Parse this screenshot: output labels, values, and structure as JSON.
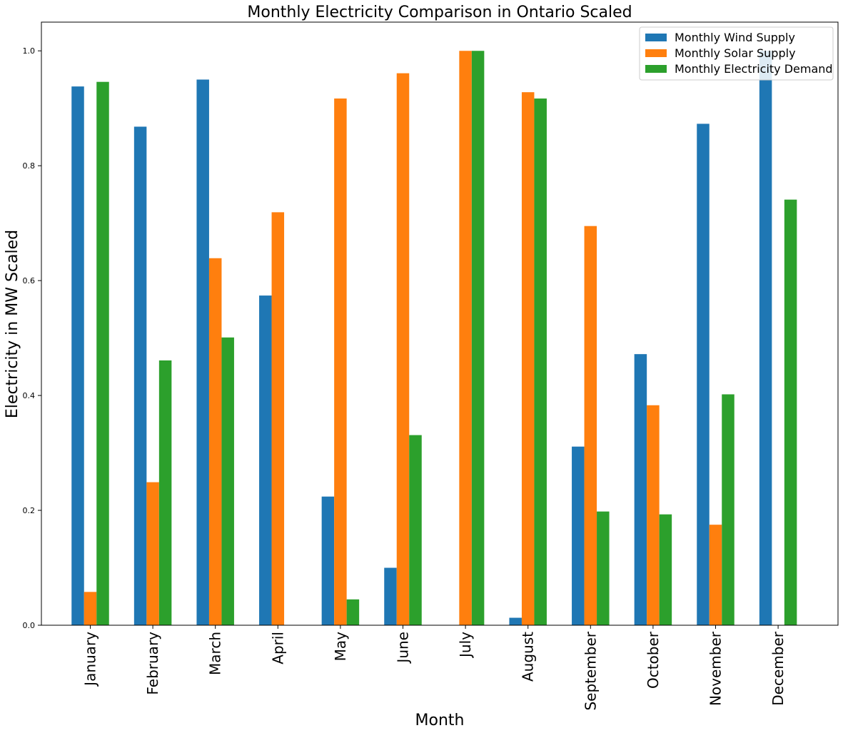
{
  "chart_data": {
    "type": "bar",
    "title": "Monthly Electricity Comparison in Ontario Scaled",
    "xlabel": "Month",
    "ylabel": "Electricity in MW Scaled",
    "ylim": [
      0,
      1.05
    ],
    "yticks": [
      "0.0",
      "0.2",
      "0.4",
      "0.6",
      "0.8",
      "1.0"
    ],
    "ytick_values": [
      0,
      0.2,
      0.4,
      0.6,
      0.8,
      1.0
    ],
    "categories": [
      "January",
      "February",
      "March",
      "April",
      "May",
      "June",
      "July",
      "August",
      "September",
      "October",
      "November",
      "December"
    ],
    "series": [
      {
        "name": "Monthly Wind Supply",
        "color": "#1f77b4",
        "values": [
          0.938,
          0.868,
          0.95,
          0.574,
          0.224,
          0.1,
          0.0,
          0.013,
          0.311,
          0.472,
          0.873,
          1.0
        ]
      },
      {
        "name": "Monthly Solar Supply",
        "color": "#ff7f0e",
        "values": [
          0.058,
          0.249,
          0.639,
          0.719,
          0.917,
          0.961,
          1.0,
          0.928,
          0.695,
          0.383,
          0.175,
          0.0
        ]
      },
      {
        "name": "Monthly Electricity Demand",
        "color": "#2ca02c",
        "values": [
          0.946,
          0.461,
          0.501,
          0.0,
          0.045,
          0.331,
          1.0,
          0.917,
          0.198,
          0.193,
          0.402,
          0.741
        ]
      }
    ],
    "legend_position": "top-right",
    "grid": false
  }
}
